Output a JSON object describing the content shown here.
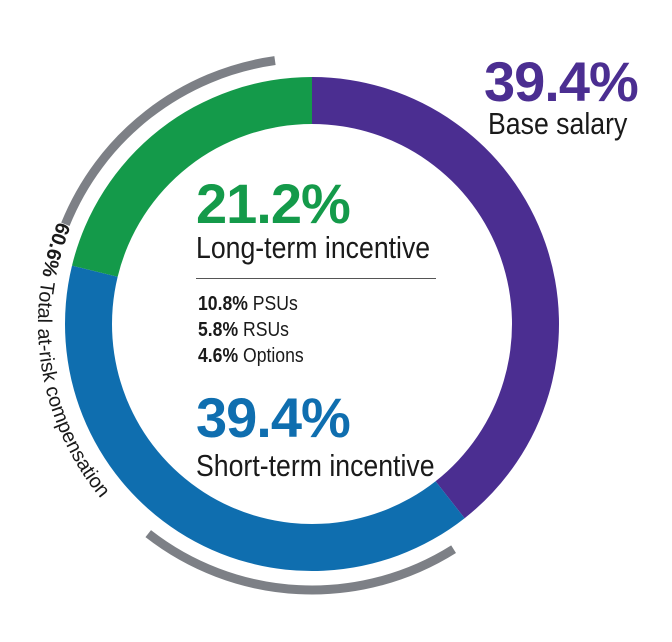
{
  "chart_data": {
    "type": "pie",
    "categories": [
      "Base salary",
      "Short-term incentive",
      "Long-term incentive"
    ],
    "values": [
      39.4,
      39.4,
      21.2
    ],
    "value_labels": [
      "39.4%",
      "39.4%",
      "21.2%"
    ],
    "colors": [
      "#4b2e91",
      "#0f6eaf",
      "#149a4a"
    ],
    "long_term_breakdown": [
      {
        "value": "10.8%",
        "label": "PSUs"
      },
      {
        "value": "5.8%",
        "label": "RSUs"
      },
      {
        "value": "4.6%",
        "label": "Options"
      }
    ],
    "at_risk": {
      "value": "60.6%",
      "label": "Total at-risk compensation"
    },
    "arc_color": "#7d8086",
    "legend": "none",
    "grid": false
  }
}
